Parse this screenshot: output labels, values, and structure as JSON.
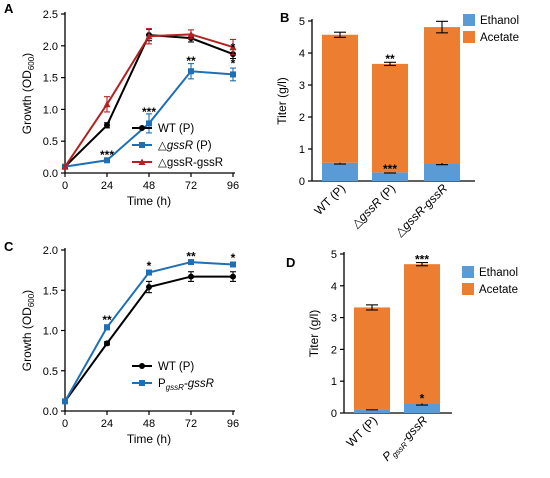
{
  "panels": {
    "a": "A",
    "b": "B",
    "c": "C",
    "d": "D"
  },
  "chart_data": [
    {
      "id": "A",
      "type": "line",
      "xlabel": "Time (h)",
      "ylabel": {
        "main": "Growth (OD",
        "sub": "600",
        "end": ")"
      },
      "x": [
        0,
        24,
        48,
        72,
        96
      ],
      "xlim": [
        0,
        96
      ],
      "ylim": [
        0,
        2.5
      ],
      "yticks": [
        "0.0",
        "0.5",
        "1.0",
        "1.5",
        "2.0",
        "2.5"
      ],
      "xticks": [
        "0",
        "24",
        "48",
        "72",
        "96"
      ],
      "legend": "lower-right",
      "series": [
        {
          "name_parts": [
            {
              "t": "WT (P)",
              "i": false
            }
          ],
          "color": "#000000",
          "marker": "circle",
          "values": [
            0.1,
            0.75,
            2.17,
            2.12,
            1.87
          ],
          "err": [
            0.02,
            0.04,
            0.09,
            0.06,
            0.07
          ]
        },
        {
          "name_parts": [
            {
              "t": "△",
              "i": false
            },
            {
              "t": "gssR",
              "i": true
            },
            {
              "t": " (P)",
              "i": false
            }
          ],
          "color": "#1f6fb4",
          "marker": "square",
          "values": [
            0.1,
            0.2,
            0.78,
            1.6,
            1.55
          ],
          "err": [
            0.02,
            0.03,
            0.15,
            0.12,
            0.1
          ]
        },
        {
          "name_parts": [
            {
              "t": "△gssR-gssR",
              "i": false
            }
          ],
          "color": "#b22222",
          "marker": "triangle",
          "values": [
            0.1,
            1.08,
            2.15,
            2.18,
            1.98
          ],
          "err": [
            0.02,
            0.12,
            0.12,
            0.07,
            0.12
          ]
        }
      ],
      "annotations": [
        {
          "x": 24,
          "y": 0.28,
          "text": "***"
        },
        {
          "x": 48,
          "y": 0.96,
          "text": "***"
        },
        {
          "x": 72,
          "y": 1.76,
          "text": "**"
        },
        {
          "x": 96,
          "y": 1.97,
          "text": "*"
        },
        {
          "x": 96,
          "y": 1.72,
          "text": "*"
        }
      ]
    },
    {
      "id": "B",
      "type": "bar",
      "ylabel": "Titer (g/l)",
      "ylim": [
        0,
        5
      ],
      "yticks": [
        "0",
        "1",
        "2",
        "3",
        "4",
        "5"
      ],
      "legend": "top-right",
      "categories": [
        [
          {
            "t": "WT (P)",
            "i": false
          }
        ],
        [
          {
            "t": "△",
            "i": false
          },
          {
            "t": "gssR",
            "i": true
          },
          {
            "t": " (P)",
            "i": false
          }
        ],
        [
          {
            "t": "△",
            "i": false
          },
          {
            "t": "gssR-gssR",
            "i": true
          }
        ]
      ],
      "series": [
        {
          "name": "Ethanol",
          "color": "#5b9bd5",
          "values": [
            0.57,
            0.27,
            0.56
          ],
          "err": [
            0.04,
            0.02,
            0.05
          ]
        },
        {
          "name": "Acetate",
          "color": "#ed7d31",
          "values": [
            4.0,
            3.39,
            4.25
          ],
          "err": [
            0.08,
            0.05,
            0.18
          ]
        }
      ],
      "annotations": [
        {
          "bar": 1,
          "y": 3.82,
          "text": "**"
        },
        {
          "bar": 1,
          "y": 0.38,
          "text": "***"
        }
      ]
    },
    {
      "id": "C",
      "type": "line",
      "xlabel": "Time (h)",
      "ylabel": {
        "main": "Growth (OD",
        "sub": "600",
        "end": ")"
      },
      "x": [
        0,
        24,
        48,
        72,
        96
      ],
      "xlim": [
        0,
        96
      ],
      "ylim": [
        0,
        2.0
      ],
      "yticks": [
        "0.0",
        "0.5",
        "1.0",
        "1.5",
        "2.0"
      ],
      "xticks": [
        "0",
        "24",
        "48",
        "72",
        "96"
      ],
      "legend": "lower-right",
      "series": [
        {
          "name_parts": [
            {
              "t": "WT (P)",
              "i": false
            }
          ],
          "color": "#000000",
          "marker": "circle",
          "values": [
            0.12,
            0.84,
            1.54,
            1.67,
            1.67
          ],
          "err": [
            0.02,
            0.02,
            0.07,
            0.06,
            0.06
          ]
        },
        {
          "name_parts": [
            {
              "t": "P",
              "i": false
            },
            {
              "t": "gssR",
              "i": true,
              "sub": true
            },
            {
              "t": "-gssR",
              "i": true
            }
          ],
          "color": "#1f6fb4",
          "marker": "square",
          "values": [
            0.12,
            1.04,
            1.72,
            1.85,
            1.82
          ],
          "err": [
            0.02,
            0.03,
            0.02,
            0.02,
            0.03
          ]
        }
      ],
      "annotations": [
        {
          "x": 24,
          "y": 1.13,
          "text": "**"
        },
        {
          "x": 48,
          "y": 1.8,
          "text": "*"
        },
        {
          "x": 72,
          "y": 1.92,
          "text": "**"
        },
        {
          "x": 96,
          "y": 1.9,
          "text": "*"
        }
      ]
    },
    {
      "id": "D",
      "type": "bar",
      "ylabel": "Titer (g/l)",
      "ylim": [
        0,
        5
      ],
      "yticks": [
        "0",
        "1",
        "2",
        "3",
        "4",
        "5"
      ],
      "legend": "top-right",
      "categories": [
        [
          {
            "t": "WT (P)",
            "i": false
          }
        ],
        [
          {
            "t": "P",
            "i": true
          },
          {
            "t": "gssR",
            "i": true,
            "sub": true
          },
          {
            "t": "-gssR",
            "i": true
          }
        ]
      ],
      "series": [
        {
          "name": "Ethanol",
          "color": "#5b9bd5",
          "values": [
            0.12,
            0.3
          ],
          "err": [
            0.02,
            0.05
          ]
        },
        {
          "name": "Acetate",
          "color": "#ed7d31",
          "values": [
            3.2,
            4.38
          ],
          "err": [
            0.08,
            0.05
          ]
        }
      ],
      "annotations": [
        {
          "bar": 1,
          "y": 4.82,
          "text": "***"
        },
        {
          "bar": 1,
          "y": 0.45,
          "text": "*"
        }
      ]
    }
  ]
}
